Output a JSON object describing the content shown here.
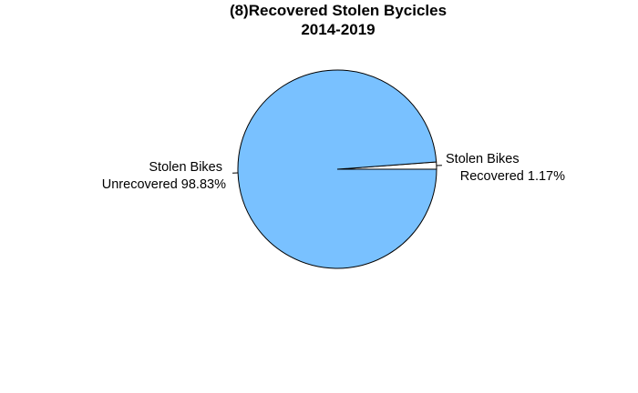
{
  "chart_data": {
    "type": "pie",
    "title": "(8)Recovered Stolen Bycicles",
    "subtitle": "2014-2019",
    "slices": [
      {
        "label_line1": "Stolen Bikes",
        "label_line2": "Recovered 1.17%",
        "value": 1.17,
        "color": "#ffffff"
      },
      {
        "label_line1": "Stolen Bikes",
        "label_line2": "Unrecovered 98.83%",
        "value": 98.83,
        "color": "#79c1ff"
      }
    ],
    "start_angle_deg": 0,
    "direction": "counterclockwise",
    "outline_color": "#000000"
  }
}
